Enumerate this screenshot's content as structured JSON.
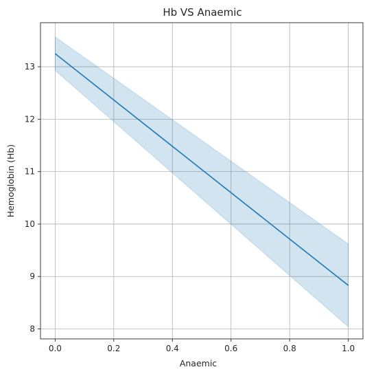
{
  "chart_data": {
    "type": "line",
    "title": "Hb VS Anaemic",
    "xlabel": "Anaemic",
    "ylabel": "Hemoglobin (Hb)",
    "xlim": [
      -0.05,
      1.05
    ],
    "ylim": [
      7.81,
      13.84
    ],
    "xticks": [
      0.0,
      0.2,
      0.4,
      0.6,
      0.8,
      1.0
    ],
    "xtick_labels": [
      "0.0",
      "0.2",
      "0.4",
      "0.6",
      "0.8",
      "1.0"
    ],
    "yticks": [
      8,
      9,
      10,
      11,
      12,
      13
    ],
    "ytick_labels": [
      "8",
      "9",
      "10",
      "11",
      "12",
      "13"
    ],
    "grid": true,
    "legend": false,
    "series": [
      {
        "x": [
          0.0,
          1.0
        ],
        "y": [
          13.25,
          8.83
        ],
        "ci_lower": [
          12.93,
          8.04
        ],
        "ci_upper": [
          13.57,
          9.62
        ],
        "color": "#1f77b4",
        "band_color": "#1f77b4"
      }
    ]
  }
}
